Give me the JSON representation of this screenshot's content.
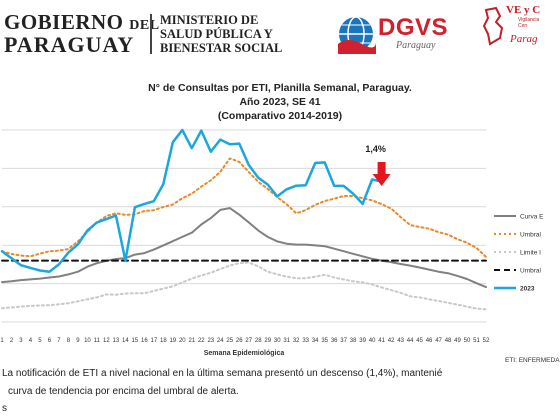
{
  "header": {
    "gobierno_line1": "GOBIERNO",
    "gobierno_del": "DEL",
    "gobierno_line2": "PARAGUAY",
    "ministerio": [
      "MINISTERIO DE",
      "SALUD PÚBLICA Y",
      "BIENESTAR SOCIAL"
    ],
    "dgvs": "DGVS",
    "dgvs_sub": "Paraguay",
    "vey_title": "VE y C",
    "vey_sub": [
      "Vigilancia",
      "Cen"
    ],
    "vey_paraguay": "Parag"
  },
  "title_lines": [
    "N° de Consultas por ETI, Planilla Semanal, Paraguay.",
    "Año 2023, SE 41",
    "(Comparativo 2014-2019)"
  ],
  "chart_data": {
    "type": "line",
    "xlabel": "Semana Epidemiológica",
    "x": [
      1,
      2,
      3,
      4,
      5,
      6,
      7,
      8,
      9,
      10,
      11,
      12,
      13,
      14,
      15,
      16,
      17,
      18,
      19,
      20,
      21,
      22,
      23,
      24,
      25,
      26,
      27,
      28,
      29,
      30,
      31,
      32,
      33,
      34,
      35,
      36,
      37,
      38,
      39,
      40,
      41,
      42,
      43,
      44,
      45,
      46,
      47,
      48,
      49,
      50,
      51,
      52
    ],
    "ylim": [
      0,
      1
    ],
    "grid": true,
    "legend_position": "right",
    "annotation": {
      "text": "1,4%",
      "x": 41
    },
    "series": [
      {
        "name": "Curva E",
        "color": "#808080",
        "dash": "solid",
        "width": 2,
        "values": [
          0.208,
          0.212,
          0.218,
          0.222,
          0.226,
          0.232,
          0.237,
          0.248,
          0.262,
          0.288,
          0.306,
          0.319,
          0.328,
          0.333,
          0.351,
          0.359,
          0.377,
          0.399,
          0.421,
          0.443,
          0.465,
          0.508,
          0.541,
          0.584,
          0.593,
          0.559,
          0.519,
          0.477,
          0.443,
          0.42,
          0.408,
          0.403,
          0.403,
          0.399,
          0.395,
          0.382,
          0.369,
          0.355,
          0.342,
          0.329,
          0.32,
          0.312,
          0.302,
          0.294,
          0.284,
          0.273,
          0.262,
          0.254,
          0.24,
          0.224,
          0.202,
          0.182
        ]
      },
      {
        "name": "Umbral",
        "color": "#e8892b",
        "dash": "dot",
        "width": 2,
        "values": [
          0.368,
          0.354,
          0.346,
          0.342,
          0.356,
          0.368,
          0.372,
          0.38,
          0.42,
          0.468,
          0.518,
          0.552,
          0.566,
          0.558,
          0.561,
          0.578,
          0.582,
          0.599,
          0.612,
          0.645,
          0.668,
          0.705,
          0.738,
          0.782,
          0.852,
          0.834,
          0.782,
          0.73,
          0.693,
          0.651,
          0.613,
          0.566,
          0.583,
          0.61,
          0.63,
          0.642,
          0.656,
          0.656,
          0.645,
          0.634,
          0.614,
          0.591,
          0.547,
          0.505,
          0.495,
          0.486,
          0.468,
          0.455,
          0.431,
          0.413,
          0.386,
          0.339
        ]
      },
      {
        "name": "Limite",
        "color": "#c8c8c8",
        "dash": "dot",
        "width": 2,
        "values": [
          0.072,
          0.076,
          0.08,
          0.084,
          0.086,
          0.088,
          0.092,
          0.098,
          0.108,
          0.118,
          0.128,
          0.144,
          0.142,
          0.148,
          0.15,
          0.15,
          0.162,
          0.174,
          0.186,
          0.206,
          0.226,
          0.242,
          0.256,
          0.276,
          0.294,
          0.306,
          0.31,
          0.29,
          0.262,
          0.248,
          0.236,
          0.228,
          0.228,
          0.236,
          0.246,
          0.232,
          0.222,
          0.212,
          0.206,
          0.196,
          0.18,
          0.166,
          0.152,
          0.134,
          0.128,
          0.118,
          0.11,
          0.1,
          0.09,
          0.08,
          0.07,
          0.066
        ]
      },
      {
        "name": "Umbral",
        "color": "#111111",
        "dash": "dash",
        "width": 2,
        "values": [
          0.32,
          0.32,
          0.32,
          0.32,
          0.32,
          0.32,
          0.32,
          0.32,
          0.32,
          0.32,
          0.32,
          0.32,
          0.32,
          0.32,
          0.32,
          0.32,
          0.32,
          0.32,
          0.32,
          0.32,
          0.32,
          0.32,
          0.32,
          0.32,
          0.32,
          0.32,
          0.32,
          0.32,
          0.32,
          0.32,
          0.32,
          0.32,
          0.32,
          0.32,
          0.32,
          0.32,
          0.32,
          0.32,
          0.32,
          0.32,
          0.32,
          0.32,
          0.32,
          0.32,
          0.32,
          0.32,
          0.32,
          0.32,
          0.32,
          0.32,
          0.32,
          0.32
        ]
      },
      {
        "name": "2023",
        "color": "#1ba7dd",
        "dash": "solid",
        "width": 2.5,
        "values": [
          0.368,
          0.332,
          0.296,
          0.282,
          0.268,
          0.262,
          0.3,
          0.362,
          0.404,
          0.477,
          0.519,
          0.536,
          0.555,
          0.321,
          0.598,
          0.615,
          0.629,
          0.718,
          0.936,
          1.0,
          0.905,
          0.997,
          0.887,
          0.95,
          0.926,
          0.929,
          0.818,
          0.752,
          0.716,
          0.654,
          0.691,
          0.71,
          0.712,
          0.828,
          0.831,
          0.709,
          0.709,
          0.668,
          0.615,
          0.742,
          0.732,
          null,
          null,
          null,
          null,
          null,
          null,
          null,
          null,
          null,
          null,
          null
        ]
      }
    ]
  },
  "legend_labels": [
    "Curva E",
    "Umbral",
    "Limite I",
    "Umbral",
    "2023"
  ],
  "eti_note": "ETI: ENFERMEDA",
  "notes": [
    "La notificación de ETI a nivel nacional en la última semana presentó un descenso (1,4%), mantenié",
    "curva de tendencia  por encima del umbral de alerta.",
    "s"
  ],
  "colors": {
    "arrow": "#e4161e",
    "grid": "#d9d9d9"
  }
}
